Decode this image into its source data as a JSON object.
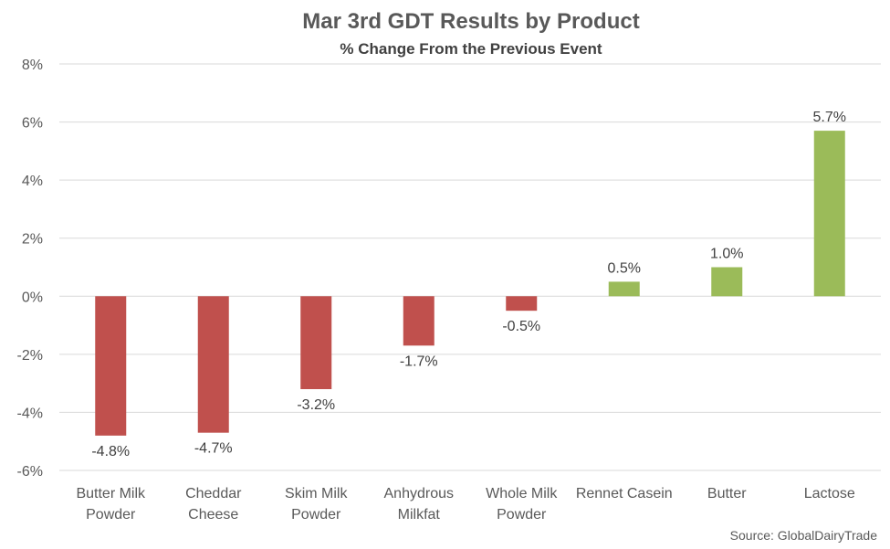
{
  "chart_data": {
    "type": "bar",
    "title": "Mar 3rd GDT Results by Product",
    "subtitle": "% Change From the Previous Event",
    "categories": [
      [
        "Butter Milk",
        "Powder"
      ],
      [
        "Cheddar",
        "Cheese"
      ],
      [
        "Skim Milk",
        "Powder"
      ],
      [
        "Anhydrous",
        "Milkfat"
      ],
      [
        "Whole Milk",
        "Powder"
      ],
      [
        "Rennet Casein"
      ],
      [
        "Butter"
      ],
      [
        "Lactose"
      ]
    ],
    "values": [
      -4.8,
      -4.7,
      -3.2,
      -1.7,
      -0.5,
      0.5,
      1.0,
      5.7
    ],
    "data_labels": [
      "-4.8%",
      "-4.7%",
      "-3.2%",
      "-1.7%",
      "-0.5%",
      "0.5%",
      "1.0%",
      "5.7%"
    ],
    "ylim": [
      -6,
      8
    ],
    "yticks": [
      8,
      6,
      4,
      2,
      0,
      -2,
      -4,
      -6
    ],
    "ytick_labels": [
      "8%",
      "6%",
      "4%",
      "2%",
      "0%",
      "-2%",
      "-4%",
      "-6%"
    ],
    "grid": true,
    "colors": {
      "negative": "#c0504d",
      "positive": "#9bbb59"
    },
    "source": "Source: GlobalDairyTrade"
  }
}
